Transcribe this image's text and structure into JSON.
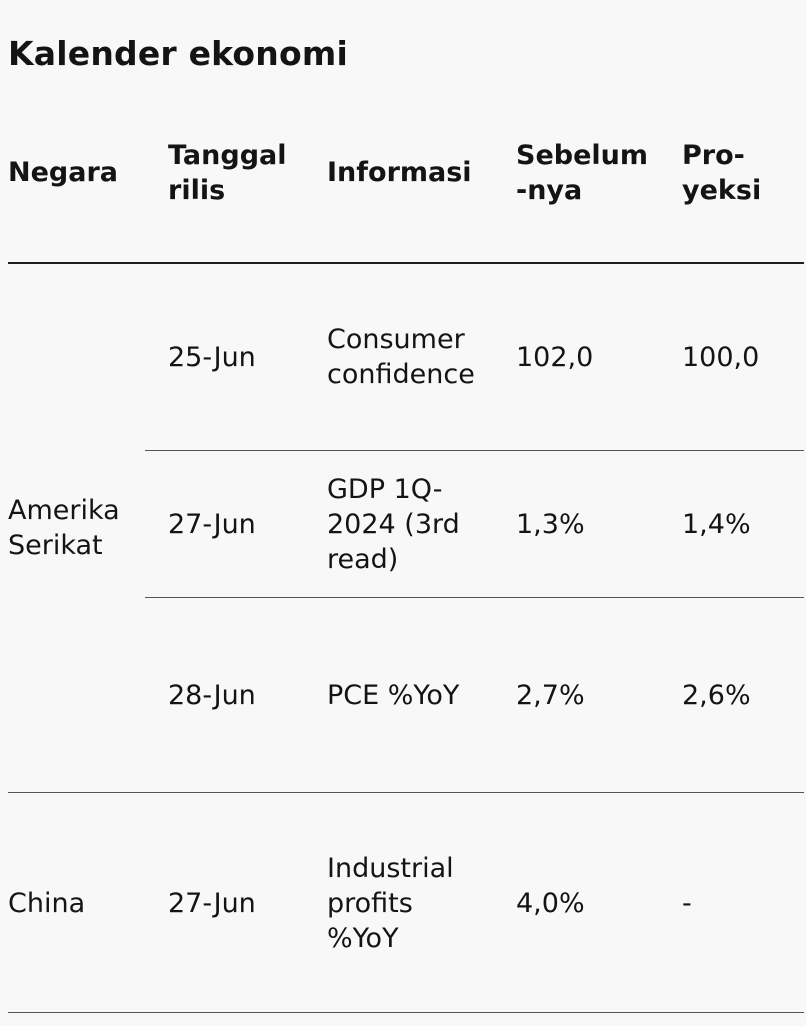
{
  "title": "Kalender ekonomi",
  "table": {
    "headers": {
      "country": "Negara",
      "release_date": "Tanggal\nrilis",
      "information": "Informasi",
      "previous": "Sebelum\n-nya",
      "projection": "Pro-\nyeksi"
    },
    "rows": [
      {
        "release_date": "25-Jun",
        "information": "Consumer\nconfidence",
        "previous": "102,0",
        "projection": "100,0"
      },
      {
        "release_date": "27-Jun",
        "information": "GDP 1Q-\n2024 (3rd\nread)",
        "previous": "1,3%",
        "projection": "1,4%"
      },
      {
        "release_date": "28-Jun",
        "information": "PCE %YoY",
        "previous": "2,7%",
        "projection": "2,6%"
      },
      {
        "release_date": "27-Jun",
        "information": "Industrial\nprofits\n%YoY",
        "previous": "4,0%",
        "projection": "-"
      }
    ],
    "groups": [
      {
        "country": "Amerika\nSerikat"
      },
      {
        "country": "China"
      }
    ]
  }
}
